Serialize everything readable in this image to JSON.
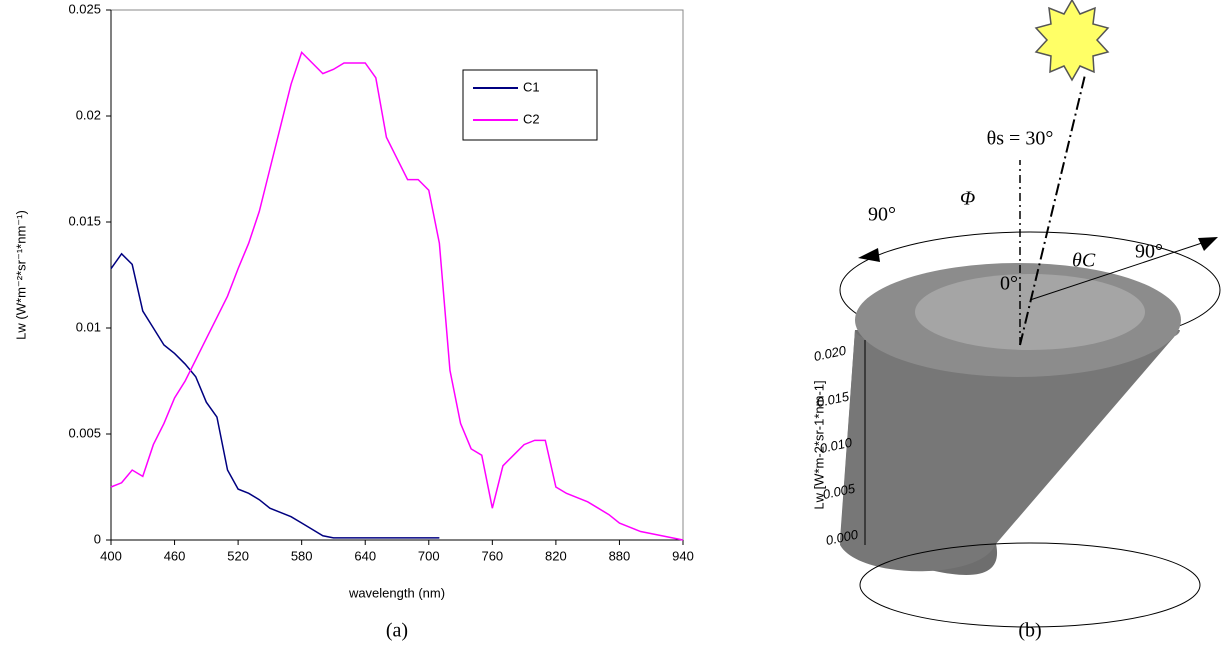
{
  "chart_data": {
    "type": "line",
    "x_label": "wavelength (nm)",
    "y_label": "Lw (W*m⁻²*sr⁻¹*nm⁻¹)",
    "caption": "(a)",
    "x": [
      400,
      410,
      420,
      430,
      440,
      450,
      460,
      470,
      480,
      490,
      500,
      510,
      520,
      530,
      540,
      550,
      560,
      570,
      580,
      590,
      600,
      610,
      620,
      630,
      640,
      650,
      660,
      670,
      680,
      690,
      700,
      710,
      720,
      730,
      740,
      750,
      760,
      770,
      780,
      790,
      800,
      810,
      820,
      830,
      840,
      850,
      860,
      870,
      880,
      890,
      900,
      910,
      920,
      930,
      940
    ],
    "series": [
      {
        "name": "C1",
        "color": "#000080",
        "values": [
          0.0128,
          0.0135,
          0.013,
          0.0108,
          0.01,
          0.0092,
          0.0088,
          0.0083,
          0.0077,
          0.0065,
          0.0058,
          0.0033,
          0.0024,
          0.0022,
          0.0019,
          0.0015,
          0.0013,
          0.0011,
          0.0008,
          0.0005,
          0.0002,
          0.0001,
          0.0001,
          0.0001,
          0.0001,
          0.0001,
          0.0001,
          0.0001,
          0.0001,
          0.0001,
          0.0001,
          0.0001,
          null,
          null,
          null,
          null,
          null,
          null,
          null,
          null,
          null,
          null,
          null,
          null,
          null,
          null,
          null,
          null,
          null,
          null,
          null,
          null,
          null,
          null,
          null
        ]
      },
      {
        "name": "C2",
        "color": "#ff00ff",
        "values": [
          0.0025,
          0.0027,
          0.0033,
          0.003,
          0.0045,
          0.0055,
          0.0067,
          0.0075,
          0.0085,
          0.0095,
          0.0105,
          0.0115,
          0.0128,
          0.014,
          0.0155,
          0.0175,
          0.0195,
          0.0215,
          0.023,
          0.0225,
          0.022,
          0.0222,
          0.0225,
          0.0225,
          0.0225,
          0.0218,
          0.019,
          0.018,
          0.017,
          0.017,
          0.0165,
          0.014,
          0.008,
          0.0055,
          0.0043,
          0.004,
          0.0015,
          0.0035,
          0.004,
          0.0045,
          0.0047,
          0.0047,
          0.0025,
          0.0022,
          0.002,
          0.0018,
          0.0015,
          0.0012,
          0.0008,
          0.0006,
          0.0004,
          0.0003,
          0.0002,
          0.0001,
          0
        ]
      }
    ],
    "xlim": [
      400,
      940
    ],
    "xticks": [
      400,
      460,
      520,
      580,
      640,
      700,
      760,
      820,
      880,
      940
    ],
    "ylim": [
      0,
      0.025
    ],
    "yticks": [
      0,
      0.005,
      0.01,
      0.015,
      0.02,
      0.025
    ],
    "legend": "upper-right"
  },
  "diagram": {
    "caption": "(b)",
    "theta_s": "θs = 30°",
    "phi": "Φ",
    "phi_90": "90°",
    "theta_c_90": "90°",
    "theta_c": "θC",
    "zero": "0°",
    "z_label": "Lw [W*m-2*sr-1*nm-1]",
    "z_ticks": [
      "0.000",
      "0.005",
      "0.010",
      "0.015",
      "0.020"
    ]
  }
}
